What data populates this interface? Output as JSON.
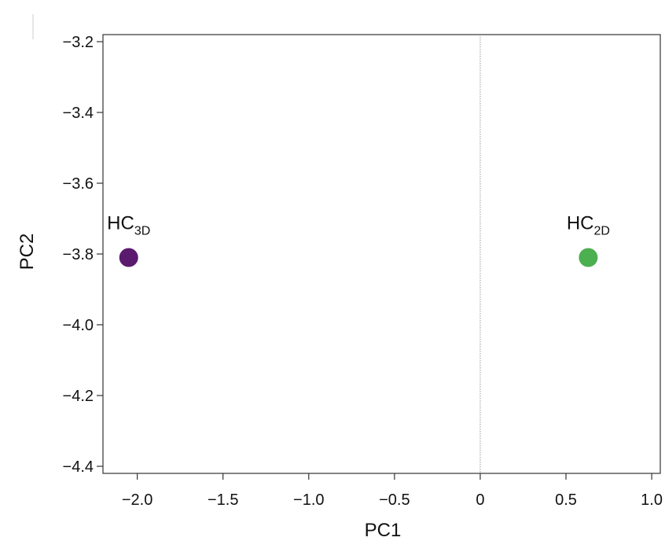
{
  "chart_data": {
    "type": "scatter",
    "title": "",
    "xlabel": "PC1",
    "ylabel": "PC2",
    "xlim": [
      -2.2,
      1.05
    ],
    "ylim": [
      -4.42,
      -3.18
    ],
    "x_ticks": [
      -2.0,
      -1.5,
      -1.0,
      -0.5,
      0,
      0.5,
      1.0
    ],
    "x_tick_labels": [
      "−2.0",
      "−1.5",
      "−1.0",
      "−0.5",
      "0",
      "0.5",
      "1.0"
    ],
    "y_ticks": [
      -3.2,
      -3.4,
      -3.6,
      -3.8,
      -4.0,
      -4.2,
      -4.4
    ],
    "y_tick_labels": [
      "−3.2",
      "−3.4",
      "−3.6",
      "−3.8",
      "−4.0",
      "−4.2",
      "−4.4"
    ],
    "reference_line_x": 0,
    "grid": false,
    "points": [
      {
        "x": -2.05,
        "y": -3.81,
        "label_main": "HC",
        "label_sub": "3D",
        "color": "#5a1a6e"
      },
      {
        "x": 0.63,
        "y": -3.81,
        "label_main": "HC",
        "label_sub": "2D",
        "color": "#4caf50"
      }
    ]
  }
}
